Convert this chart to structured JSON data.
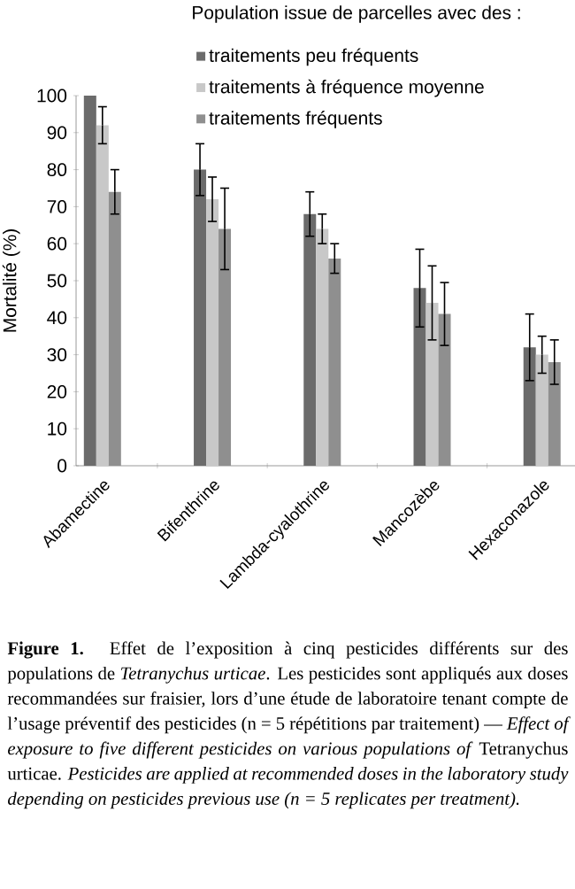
{
  "chart_data": {
    "type": "bar",
    "ylabel": "Mortalité (%)",
    "legend_title": "Population issue de parcelles avec des :",
    "categories": [
      "Abamectine",
      "Bifenthrine",
      "Lambda-cyalothrine",
      "Mancozèbe",
      "Hexaconazole"
    ],
    "series": [
      {
        "name": "traitements peu fréquents",
        "color": "#6b6b6b",
        "values": [
          100,
          80,
          68,
          48,
          32
        ],
        "errors": [
          null,
          7,
          6,
          10.5,
          9
        ]
      },
      {
        "name": "traitements à fréquence moyenne",
        "color": "#c8c8c8",
        "values": [
          92,
          72,
          64,
          44,
          30
        ],
        "errors": [
          5,
          6,
          4,
          10,
          5
        ]
      },
      {
        "name": "traitements fréquents",
        "color": "#8f8f8f",
        "values": [
          74,
          64,
          56,
          41,
          28
        ],
        "errors": [
          6,
          11,
          4,
          8.5,
          6
        ]
      }
    ],
    "ylim": [
      0,
      100
    ],
    "yticks": [
      0,
      10,
      20,
      30,
      40,
      50,
      60,
      70,
      80,
      90,
      100
    ],
    "grid": false,
    "legend": "top right",
    "annotations": [
      "**Figure 1.** Effet de l’exposition à cinq pesticides différents sur des populations de *Tetranychus urticae*. Les pesticides sont appliqués aux doses recommandées sur fraisier, lors d’une étude de laboratoire tenant compte de l’usage préventif des pesticides (n = 5 répétitions par traitement) — *Effect of exposure to five different pesticides on various populations of* Tetranychus urticae. *Pesticides are applied at recommended doses in the laboratory study depending on pesticides previous use (n = 5 replicates per treatment).*"
    ]
  }
}
